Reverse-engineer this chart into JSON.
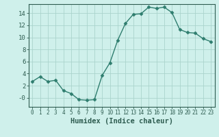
{
  "x": [
    0,
    1,
    2,
    3,
    4,
    5,
    6,
    7,
    8,
    9,
    10,
    11,
    12,
    13,
    14,
    15,
    16,
    17,
    18,
    19,
    20,
    21,
    22,
    23
  ],
  "y": [
    2.7,
    3.5,
    2.7,
    2.9,
    1.2,
    0.7,
    -0.3,
    -0.4,
    -0.3,
    3.7,
    5.8,
    9.5,
    12.3,
    13.8,
    13.9,
    15.0,
    14.8,
    15.0,
    14.1,
    11.3,
    10.8,
    10.7,
    9.8,
    9.3
  ],
  "xlabel": "Humidex (Indice chaleur)",
  "line_color": "#2e7d6e",
  "marker": "D",
  "marker_size": 2.5,
  "bg_color": "#cff0eb",
  "grid_color": "#aad4cc",
  "xlim": [
    -0.5,
    23.5
  ],
  "ylim": [
    -1.5,
    15.5
  ],
  "yticks": [
    0,
    2,
    4,
    6,
    8,
    10,
    12,
    14
  ],
  "ytick_labels": [
    "-0",
    "2",
    "4",
    "6",
    "8",
    "10",
    "12",
    "14"
  ],
  "xtick_labels": [
    "0",
    "1",
    "2",
    "3",
    "4",
    "5",
    "6",
    "7",
    "8",
    "9",
    "10",
    "11",
    "12",
    "13",
    "14",
    "15",
    "16",
    "17",
    "18",
    "19",
    "20",
    "21",
    "22",
    "23"
  ],
  "tick_color": "#2e5c50",
  "xlabel_fontsize": 7.5,
  "ytick_fontsize": 6.5,
  "xtick_fontsize": 5.5,
  "spine_color": "#2e5c50",
  "linewidth": 1.0
}
